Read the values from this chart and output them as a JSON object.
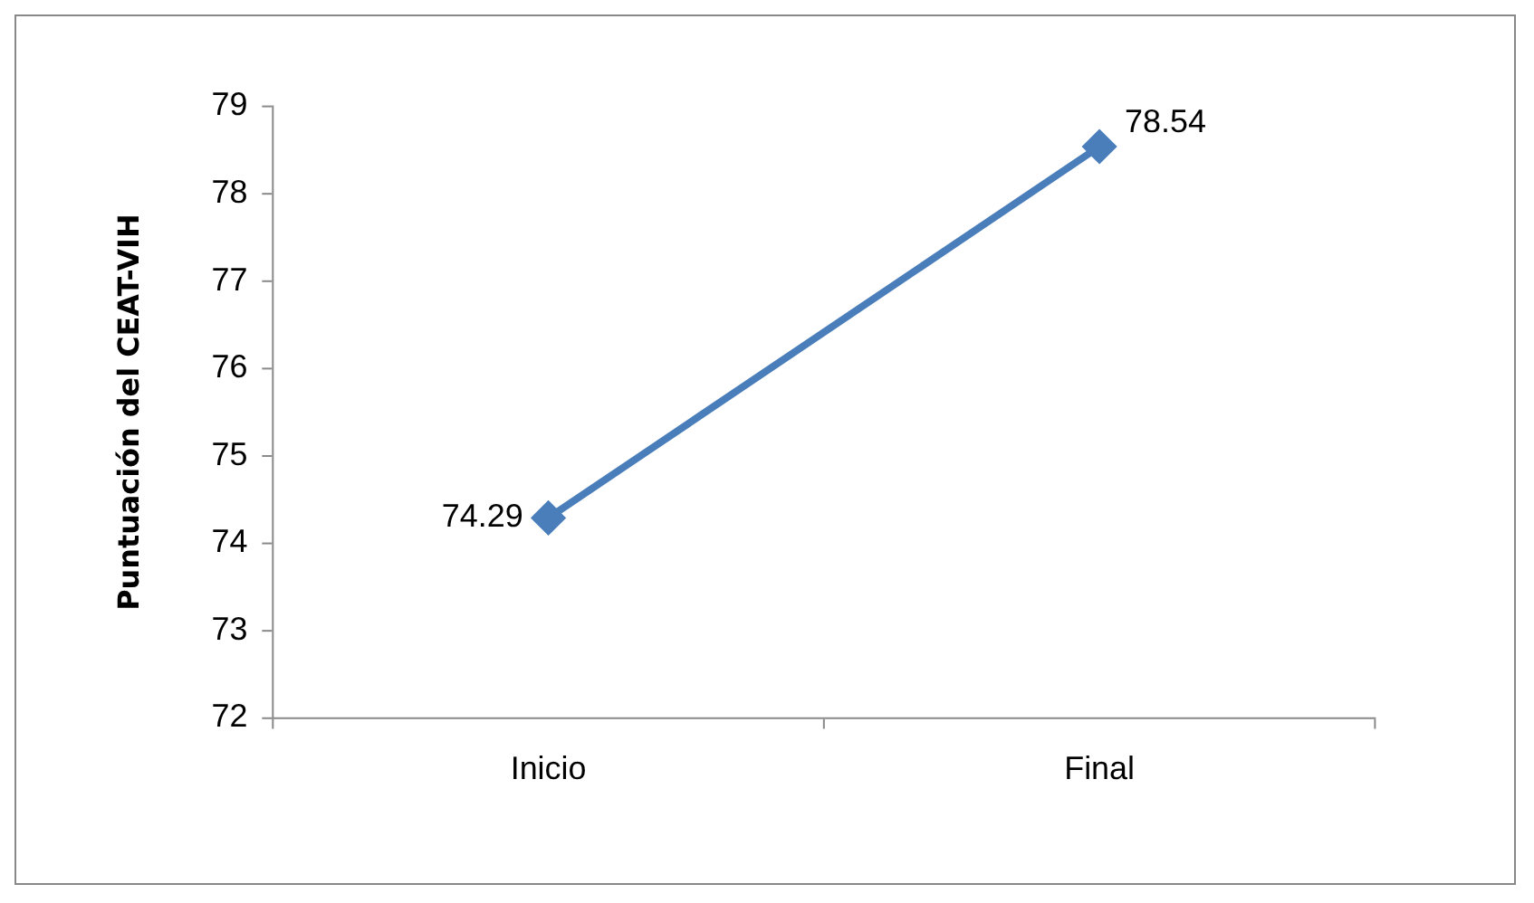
{
  "chart_data": {
    "type": "line",
    "ylabel": "Puntuación del CEAT-VIH",
    "categories": [
      "Inicio",
      "Final"
    ],
    "series": [
      {
        "color": "#4a7ebb",
        "values": [
          74.29,
          78.54
        ]
      }
    ],
    "ylim": [
      72,
      79
    ],
    "yticks": [
      72,
      73,
      74,
      75,
      76,
      77,
      78,
      79
    ],
    "grid": false,
    "legend": false,
    "marker": "diamond",
    "line_style": "solid",
    "data_labels": true
  }
}
